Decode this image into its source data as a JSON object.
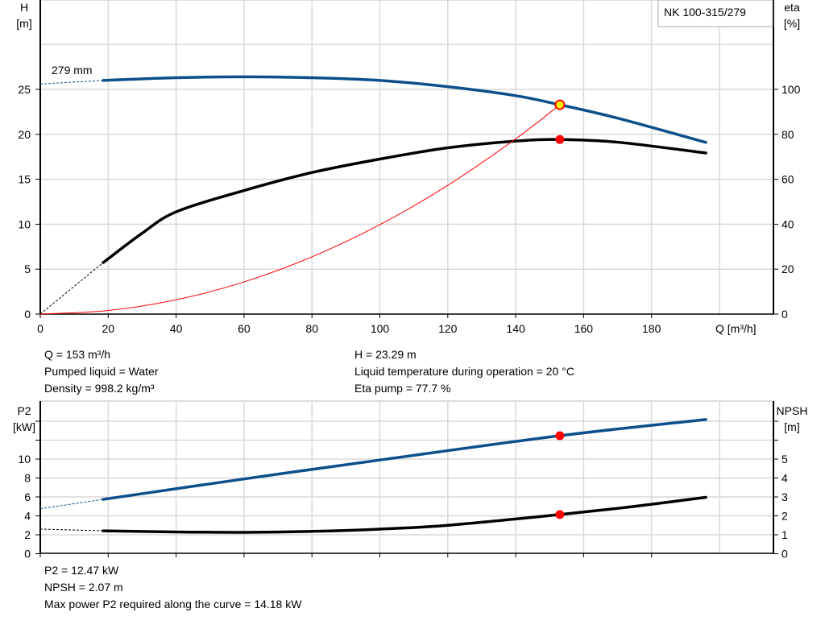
{
  "colors": {
    "head": "#0d4f8b",
    "eta": "#000000",
    "system": "#ff0000",
    "duty_point": "#ff0000",
    "duty_point_head": "#ffff00",
    "grid": "#d9d9d9"
  },
  "chart_data": [
    {
      "type": "line",
      "title": "NK 100-315/279",
      "xlabel": "Q [m³/h]",
      "ylabel": "H\n[m]",
      "y2label": "eta\n[%]",
      "ylabel_lines": [
        "H",
        "[m]"
      ],
      "y2label_lines": [
        "eta",
        "[%]"
      ],
      "xlim": [
        0,
        216
      ],
      "ylim": [
        0,
        35
      ],
      "y2lim": [
        0,
        140
      ],
      "xticks": [
        0,
        20,
        40,
        60,
        80,
        100,
        120,
        140,
        160,
        180
      ],
      "yticks": [
        0,
        5,
        10,
        15,
        20,
        25
      ],
      "y2ticks": [
        0,
        20,
        40,
        60,
        80,
        100
      ],
      "grid": true,
      "annotation": "279 mm",
      "series": [
        {
          "key": "head",
          "axis": "left",
          "points": [
            [
              18.5,
              26.0
            ],
            [
              40,
              26.3
            ],
            [
              60,
              26.4
            ],
            [
              80,
              26.3
            ],
            [
              100,
              26.0
            ],
            [
              120,
              25.3
            ],
            [
              140,
              24.3
            ],
            [
              153,
              23.29
            ],
            [
              170,
              21.8
            ],
            [
              196,
              19.1
            ]
          ],
          "extrapolated": [
            [
              0,
              25.6
            ],
            [
              18.5,
              26.0
            ]
          ]
        },
        {
          "key": "eta",
          "axis": "right",
          "points": [
            [
              18.5,
              22.9
            ],
            [
              30,
              36
            ],
            [
              40,
              45.5
            ],
            [
              60,
              55
            ],
            [
              80,
              63
            ],
            [
              100,
              69
            ],
            [
              120,
              74
            ],
            [
              140,
              77
            ],
            [
              153,
              77.7
            ],
            [
              170,
              76.5
            ],
            [
              196,
              71.7
            ]
          ],
          "extrapolated": [
            [
              0,
              0
            ],
            [
              18.5,
              22.9
            ]
          ]
        },
        {
          "key": "system",
          "axis": "left",
          "points": [
            [
              0,
              0
            ],
            [
              20,
              0.4
            ],
            [
              40,
              1.59
            ],
            [
              60,
              3.58
            ],
            [
              80,
              6.37
            ],
            [
              100,
              9.95
            ],
            [
              120,
              14.33
            ],
            [
              140,
              19.5
            ],
            [
              153,
              23.29
            ]
          ]
        }
      ],
      "duty_point": {
        "q": 153,
        "h": 23.29,
        "eta": 77.7
      }
    },
    {
      "type": "line",
      "ylabel_lines": [
        "P2",
        "[kW]"
      ],
      "y2label_lines": [
        "NPSH",
        "[m]"
      ],
      "xlim": [
        0,
        216
      ],
      "ylim": [
        0,
        16
      ],
      "y2lim": [
        0,
        8
      ],
      "yticks": [
        0,
        2,
        4,
        6,
        8,
        10
      ],
      "y2ticks": [
        0,
        1,
        2,
        3,
        4,
        5
      ],
      "grid": true,
      "series": [
        {
          "key": "p2",
          "axis": "left",
          "points": [
            [
              18.5,
              5.74
            ],
            [
              60,
              7.9
            ],
            [
              100,
              9.9
            ],
            [
              153,
              12.47
            ],
            [
              196,
              14.18
            ]
          ],
          "extrapolated": [
            [
              0,
              4.75
            ],
            [
              18.5,
              5.74
            ]
          ]
        },
        {
          "key": "npsh",
          "axis": "right",
          "points": [
            [
              18.5,
              1.21
            ],
            [
              40,
              1.15
            ],
            [
              60,
              1.13
            ],
            [
              80,
              1.18
            ],
            [
              100,
              1.3
            ],
            [
              120,
              1.5
            ],
            [
              153,
              2.07
            ],
            [
              175,
              2.5
            ],
            [
              196,
              2.98
            ]
          ],
          "extrapolated": [
            [
              0,
              1.3
            ],
            [
              18.5,
              1.21
            ]
          ]
        }
      ],
      "duty_point": {
        "q": 153,
        "p2": 12.47,
        "npsh": 2.07
      }
    }
  ],
  "info_top": {
    "left": [
      "Q = 153 m³/h",
      "Pumped liquid = Water",
      "Density = 998.2 kg/m³"
    ],
    "right": [
      "H = 23.29 m",
      "Liquid temperature during operation = 20 °C",
      "Eta pump = 77.7 %"
    ]
  },
  "info_bottom": [
    "P2 = 12.47 kW",
    "NPSH = 2.07 m",
    "Max power P2 required along the curve = 14.18 kW"
  ]
}
